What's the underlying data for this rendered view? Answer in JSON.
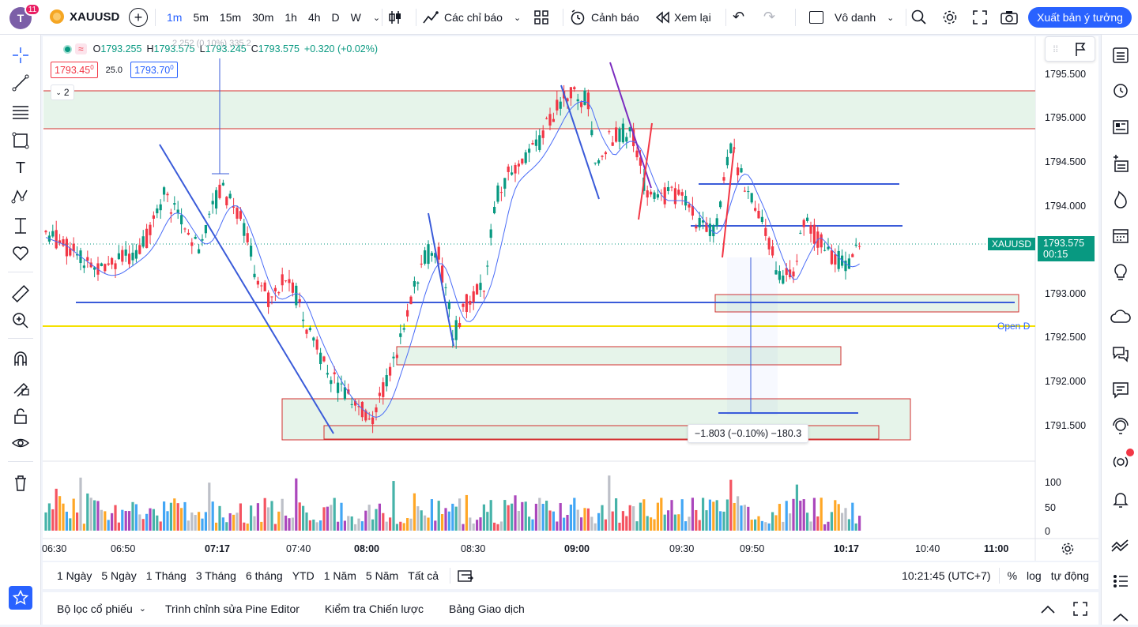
{
  "topbar": {
    "avatar_letter": "T",
    "notification_count": "11",
    "symbol": "XAUUSD",
    "intervals": [
      "1m",
      "5m",
      "15m",
      "30m",
      "1h",
      "4h",
      "D",
      "W"
    ],
    "active_interval": "1m",
    "indicators_label": "Các chỉ báo",
    "alert_label": "Cảnh báo",
    "replay_label": "Xem lại",
    "layout_name": "Vô danh",
    "publish_label": "Xuất bản ý tưởng"
  },
  "legend": {
    "o_label": "O",
    "o": "1793.255",
    "h_label": "H",
    "h": "1793.575",
    "l_label": "L",
    "l": "1793.245",
    "c_label": "C",
    "c": "1793.575",
    "change": "+0.320 (+0.02%)",
    "sell_price": "1793.45",
    "sell_sup": "0",
    "spread": "25.0",
    "buy_price": "1793.70",
    "buy_sup": "0",
    "indicator_count": "2",
    "faded_measure": "2.252 (0.10%) 335.2"
  },
  "price_axis": [
    "1795.500",
    "1795.000",
    "1794.500",
    "1794.000",
    "1793.000",
    "1792.500",
    "1792.000",
    "1791.500"
  ],
  "volume_axis": [
    "100",
    "50",
    "0"
  ],
  "time_axis": [
    "06:30",
    "06:50",
    "07:17",
    "07:40",
    "08:00",
    "08:30",
    "09:00",
    "09:30",
    "09:50",
    "10:17",
    "10:40",
    "11:00"
  ],
  "bold_times": [
    "07:17",
    "08:00",
    "09:00",
    "10:17"
  ],
  "current_price": {
    "symbol_tag": "XAUUSD",
    "price": "1793.575",
    "countdown": "00:15"
  },
  "open_d_label": "Open D",
  "measure_label": "−1.803 (−0.10%) −180.3",
  "ranges": [
    "1 Ngày",
    "5 Ngày",
    "1 Tháng",
    "3 Tháng",
    "6 tháng",
    "YTD",
    "1 Năm",
    "5 Năm",
    "Tất cả"
  ],
  "clock": "10:21:45 (UTC+7)",
  "scale_options": [
    "%",
    "log",
    "tự động"
  ],
  "bottom_tabs": [
    "Bộ lọc cổ phiếu",
    "Trình chỉnh sửa Pine Editor",
    "Kiểm tra Chiến lược",
    "Bảng Giao dịch"
  ],
  "colors": {
    "up": "#089981",
    "down": "#f23645",
    "accent": "#2962ff",
    "zone_fill": "#e6f4ea",
    "zone_border": "#d32f2f",
    "open_line": "#f5e100",
    "trend_line": "#3a5bd9"
  },
  "chart_data": {
    "type": "candlestick",
    "price_range": [
      1791.2,
      1795.75
    ],
    "current_price": 1793.575,
    "horizontal_levels": [
      1795.3,
      1794.87,
      1794.25,
      1793.78,
      1792.9,
      1792.63,
      1791.65
    ],
    "open_d": 1792.63
  }
}
